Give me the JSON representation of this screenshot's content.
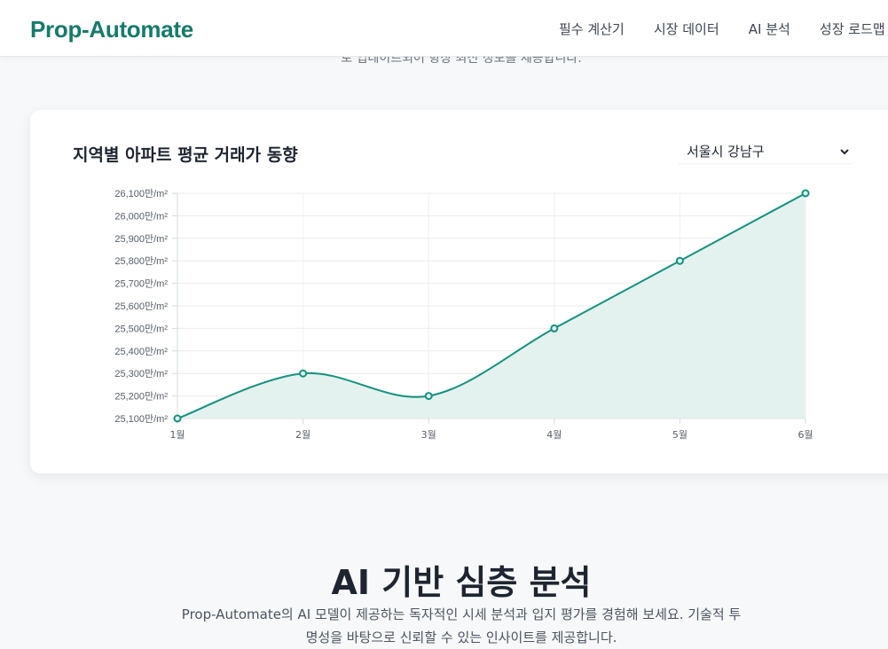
{
  "header": {
    "logo": "Prop-Automate",
    "nav": [
      "필수 계산기",
      "시장 데이터",
      "AI 분석",
      "성장 로드맵"
    ]
  },
  "prev_section_text": "로 업데이트되어 항상 최신 정보를 제공합니다.",
  "chart_card": {
    "title": "지역별 아파트 평균 거래가 동향",
    "region_select": {
      "selected": "서울시 강남구",
      "options": [
        "서울시 강남구"
      ]
    }
  },
  "chart_data": {
    "type": "area",
    "categories": [
      "1월",
      "2월",
      "3월",
      "4월",
      "5월",
      "6월"
    ],
    "values": [
      25100,
      25300,
      25200,
      25500,
      25800,
      26100
    ],
    "ylim": [
      25100,
      26100
    ],
    "y_ticks": [
      25100,
      25200,
      25300,
      25400,
      25500,
      25600,
      25700,
      25800,
      25900,
      26000,
      26100
    ],
    "y_tick_suffix": "만/m²",
    "line_color": "#14917f",
    "fill_color": "#e3f2ef",
    "grid": true
  },
  "ai_section": {
    "title": "AI 기반 심층 분석",
    "description_line1": "Prop-Automate의 AI 모델이 제공하는 독자적인 시세 분석과 입지 평가를 경험해 보세요. 기술적 투",
    "description_line2": "명성을 바탕으로 신뢰할 수 있는 인사이트를 제공합니다."
  }
}
